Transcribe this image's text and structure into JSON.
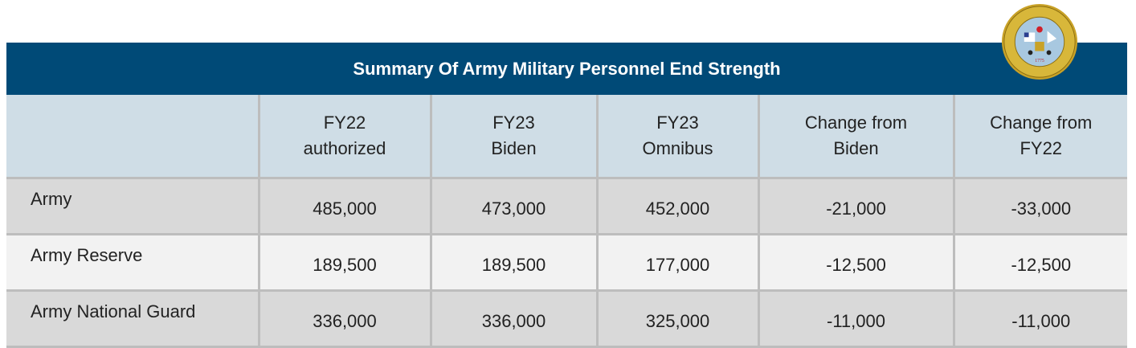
{
  "title": "Summary Of Army Military Personnel End Strength",
  "seal": {
    "text": "DEPARTMENT OF THE ARMY · UNITED STATES OF AMERICA · 1775",
    "icon": "army-seal"
  },
  "colors": {
    "header": "#004a77",
    "column_header": "#cfdde6",
    "row_dark": "#d9d9d9",
    "row_light": "#f2f2f2"
  },
  "columns": [
    {
      "l1": "",
      "l2": ""
    },
    {
      "l1": "FY22",
      "l2": "authorized"
    },
    {
      "l1": "FY23",
      "l2": "Biden"
    },
    {
      "l1": "FY23",
      "l2": "Omnibus"
    },
    {
      "l1": "Change from",
      "l2": "Biden"
    },
    {
      "l1": "Change from",
      "l2": "FY22"
    }
  ],
  "rows": [
    [
      "Army",
      "485,000",
      "473,000",
      "452,000",
      "-21,000",
      "-33,000"
    ],
    [
      "Army Reserve",
      "189,500",
      "189,500",
      "177,000",
      "-12,500",
      "-12,500"
    ],
    [
      "Army National Guard",
      "336,000",
      "336,000",
      "325,000",
      "-11,000",
      "-11,000"
    ]
  ]
}
